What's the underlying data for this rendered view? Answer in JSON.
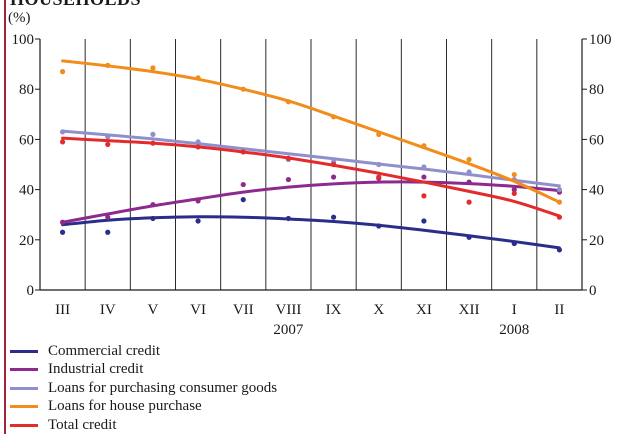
{
  "chart_data": {
    "type": "line",
    "title": "HOUSEHOLDS",
    "unit_label": "(%)",
    "categories": [
      "III",
      "IV",
      "V",
      "VI",
      "VII",
      "VIII",
      "IX",
      "X",
      "XI",
      "XII",
      "I",
      "II"
    ],
    "year_labels": [
      {
        "label": "2007",
        "category": "VIII"
      },
      {
        "label": "2008",
        "category": "I"
      }
    ],
    "ylim": [
      0,
      100
    ],
    "yticks": [
      0,
      20,
      40,
      60,
      80,
      100
    ],
    "grid": {
      "vertical": true,
      "horizontal": false
    },
    "legend_position": "bottom",
    "series": [
      {
        "name": "Commercial credit",
        "color": "#2b2d8a",
        "points": [
          23,
          23,
          28.5,
          27.5,
          36,
          28.5,
          29,
          25.5,
          27.5,
          21,
          18.5,
          16
        ],
        "trend": [
          26,
          27.8,
          28.8,
          29.2,
          29.0,
          28.3,
          27.3,
          25.8,
          23.8,
          21.6,
          19.3,
          16.8
        ]
      },
      {
        "name": "Industrial credit",
        "color": "#8e2a8e",
        "points": [
          27,
          29,
          34,
          35.5,
          42,
          44,
          45,
          44.5,
          45,
          43,
          40,
          39
        ],
        "trend": [
          27,
          30.3,
          33.5,
          36.3,
          39.0,
          41.0,
          42.3,
          43.0,
          43.0,
          42.4,
          41.3,
          39.6
        ]
      },
      {
        "name": "Loans for purchasing consumer goods",
        "color": "#8f8fcc",
        "points": [
          63,
          61,
          62,
          59,
          55,
          52,
          51,
          50,
          49,
          47,
          44,
          40
        ],
        "trend": [
          63.3,
          61.8,
          60.2,
          58.3,
          56.3,
          54.3,
          52.3,
          50.2,
          48.2,
          46.0,
          43.7,
          41.5
        ]
      },
      {
        "name": "Loans for house purchase",
        "color": "#f28c1a",
        "points": [
          87,
          89.5,
          88.5,
          84.5,
          80,
          75,
          69,
          62,
          57.5,
          52,
          46,
          35
        ],
        "trend": [
          91.3,
          89.3,
          87.0,
          84.0,
          80.0,
          75.3,
          69.3,
          63.0,
          56.7,
          50.3,
          43.3,
          35.0
        ]
      },
      {
        "name": "Total credit",
        "color": "#e32b2b",
        "points": [
          59,
          58,
          58.5,
          57,
          55,
          52.5,
          50,
          45,
          37.5,
          35,
          38.5,
          29
        ],
        "trend": [
          60.5,
          59.5,
          58.5,
          57.0,
          55.0,
          52.6,
          49.7,
          46.5,
          43.0,
          39.3,
          35.3,
          29.5
        ]
      }
    ]
  }
}
